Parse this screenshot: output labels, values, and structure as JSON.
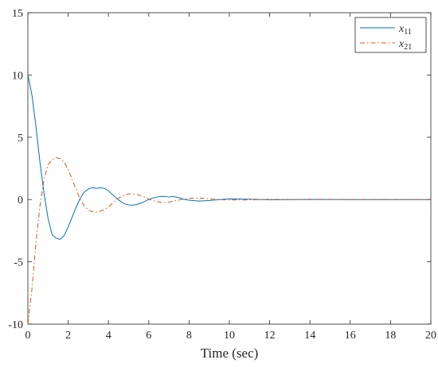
{
  "chart_data": {
    "type": "line",
    "title": "",
    "xlabel": "Time (sec)",
    "ylabel": "",
    "xlim": [
      0,
      20
    ],
    "ylim": [
      -10,
      15
    ],
    "xticks": [
      0,
      2,
      4,
      6,
      8,
      10,
      12,
      14,
      16,
      18,
      20
    ],
    "yticks": [
      -10,
      -5,
      0,
      5,
      10,
      15
    ],
    "grid": false,
    "legend": {
      "position": "top-right"
    },
    "series": [
      {
        "name": "x",
        "sub": "11",
        "color": "#0072BD",
        "line_style": "solid",
        "x": [
          0,
          0.2,
          0.4,
          0.6,
          0.8,
          1.0,
          1.2,
          1.4,
          1.6,
          1.8,
          2.0,
          2.2,
          2.4,
          2.6,
          2.8,
          3.0,
          3.2,
          3.4,
          3.6,
          3.8,
          4.0,
          4.2,
          4.4,
          4.6,
          4.8,
          5.0,
          5.2,
          5.4,
          5.6,
          5.8,
          6.0,
          6.2,
          6.4,
          6.6,
          6.8,
          7.0,
          7.2,
          7.4,
          7.6,
          7.8,
          8.0,
          8.5,
          9.0,
          9.5,
          10,
          11,
          12,
          13,
          14,
          16,
          18,
          20
        ],
        "y": [
          10.0,
          8.4,
          5.9,
          3.0,
          0.5,
          -1.5,
          -2.8,
          -3.1,
          -3.2,
          -2.9,
          -2.2,
          -1.4,
          -0.6,
          0.1,
          0.6,
          0.85,
          0.95,
          0.9,
          0.95,
          0.9,
          0.7,
          0.4,
          0.1,
          -0.15,
          -0.35,
          -0.43,
          -0.45,
          -0.4,
          -0.3,
          -0.15,
          0.0,
          0.12,
          0.2,
          0.25,
          0.24,
          0.2,
          0.25,
          0.18,
          0.1,
          0.0,
          -0.05,
          -0.12,
          -0.08,
          0.0,
          0.05,
          0.03,
          -0.02,
          0.0,
          0.01,
          0.0,
          0.0,
          0.0
        ]
      },
      {
        "name": "x",
        "sub": "21",
        "color": "#D95319",
        "line_style": "dashdot",
        "x": [
          0,
          0.2,
          0.4,
          0.6,
          0.8,
          1.0,
          1.2,
          1.4,
          1.6,
          1.8,
          2.0,
          2.2,
          2.4,
          2.6,
          2.8,
          3.0,
          3.2,
          3.4,
          3.6,
          3.8,
          4.0,
          4.2,
          4.4,
          4.6,
          4.8,
          5.0,
          5.2,
          5.4,
          5.6,
          5.8,
          6.0,
          6.2,
          6.4,
          6.6,
          6.8,
          7.0,
          7.2,
          7.4,
          7.6,
          7.8,
          8.0,
          8.5,
          9.0,
          9.5,
          10,
          11,
          12,
          13,
          14,
          16,
          18,
          20
        ],
        "y": [
          -10.0,
          -7.2,
          -3.5,
          -0.5,
          1.6,
          2.8,
          3.2,
          3.35,
          3.3,
          3.0,
          2.4,
          1.6,
          0.8,
          0.0,
          -0.5,
          -0.85,
          -0.98,
          -1.0,
          -0.92,
          -0.8,
          -0.6,
          -0.3,
          0.0,
          0.2,
          0.35,
          0.45,
          0.46,
          0.42,
          0.32,
          0.18,
          0.05,
          -0.08,
          -0.18,
          -0.22,
          -0.24,
          -0.2,
          -0.15,
          -0.08,
          0.0,
          0.06,
          0.1,
          0.12,
          0.06,
          0.0,
          -0.04,
          -0.03,
          0.02,
          0.0,
          -0.01,
          0.0,
          0.0,
          0.0
        ]
      }
    ]
  }
}
